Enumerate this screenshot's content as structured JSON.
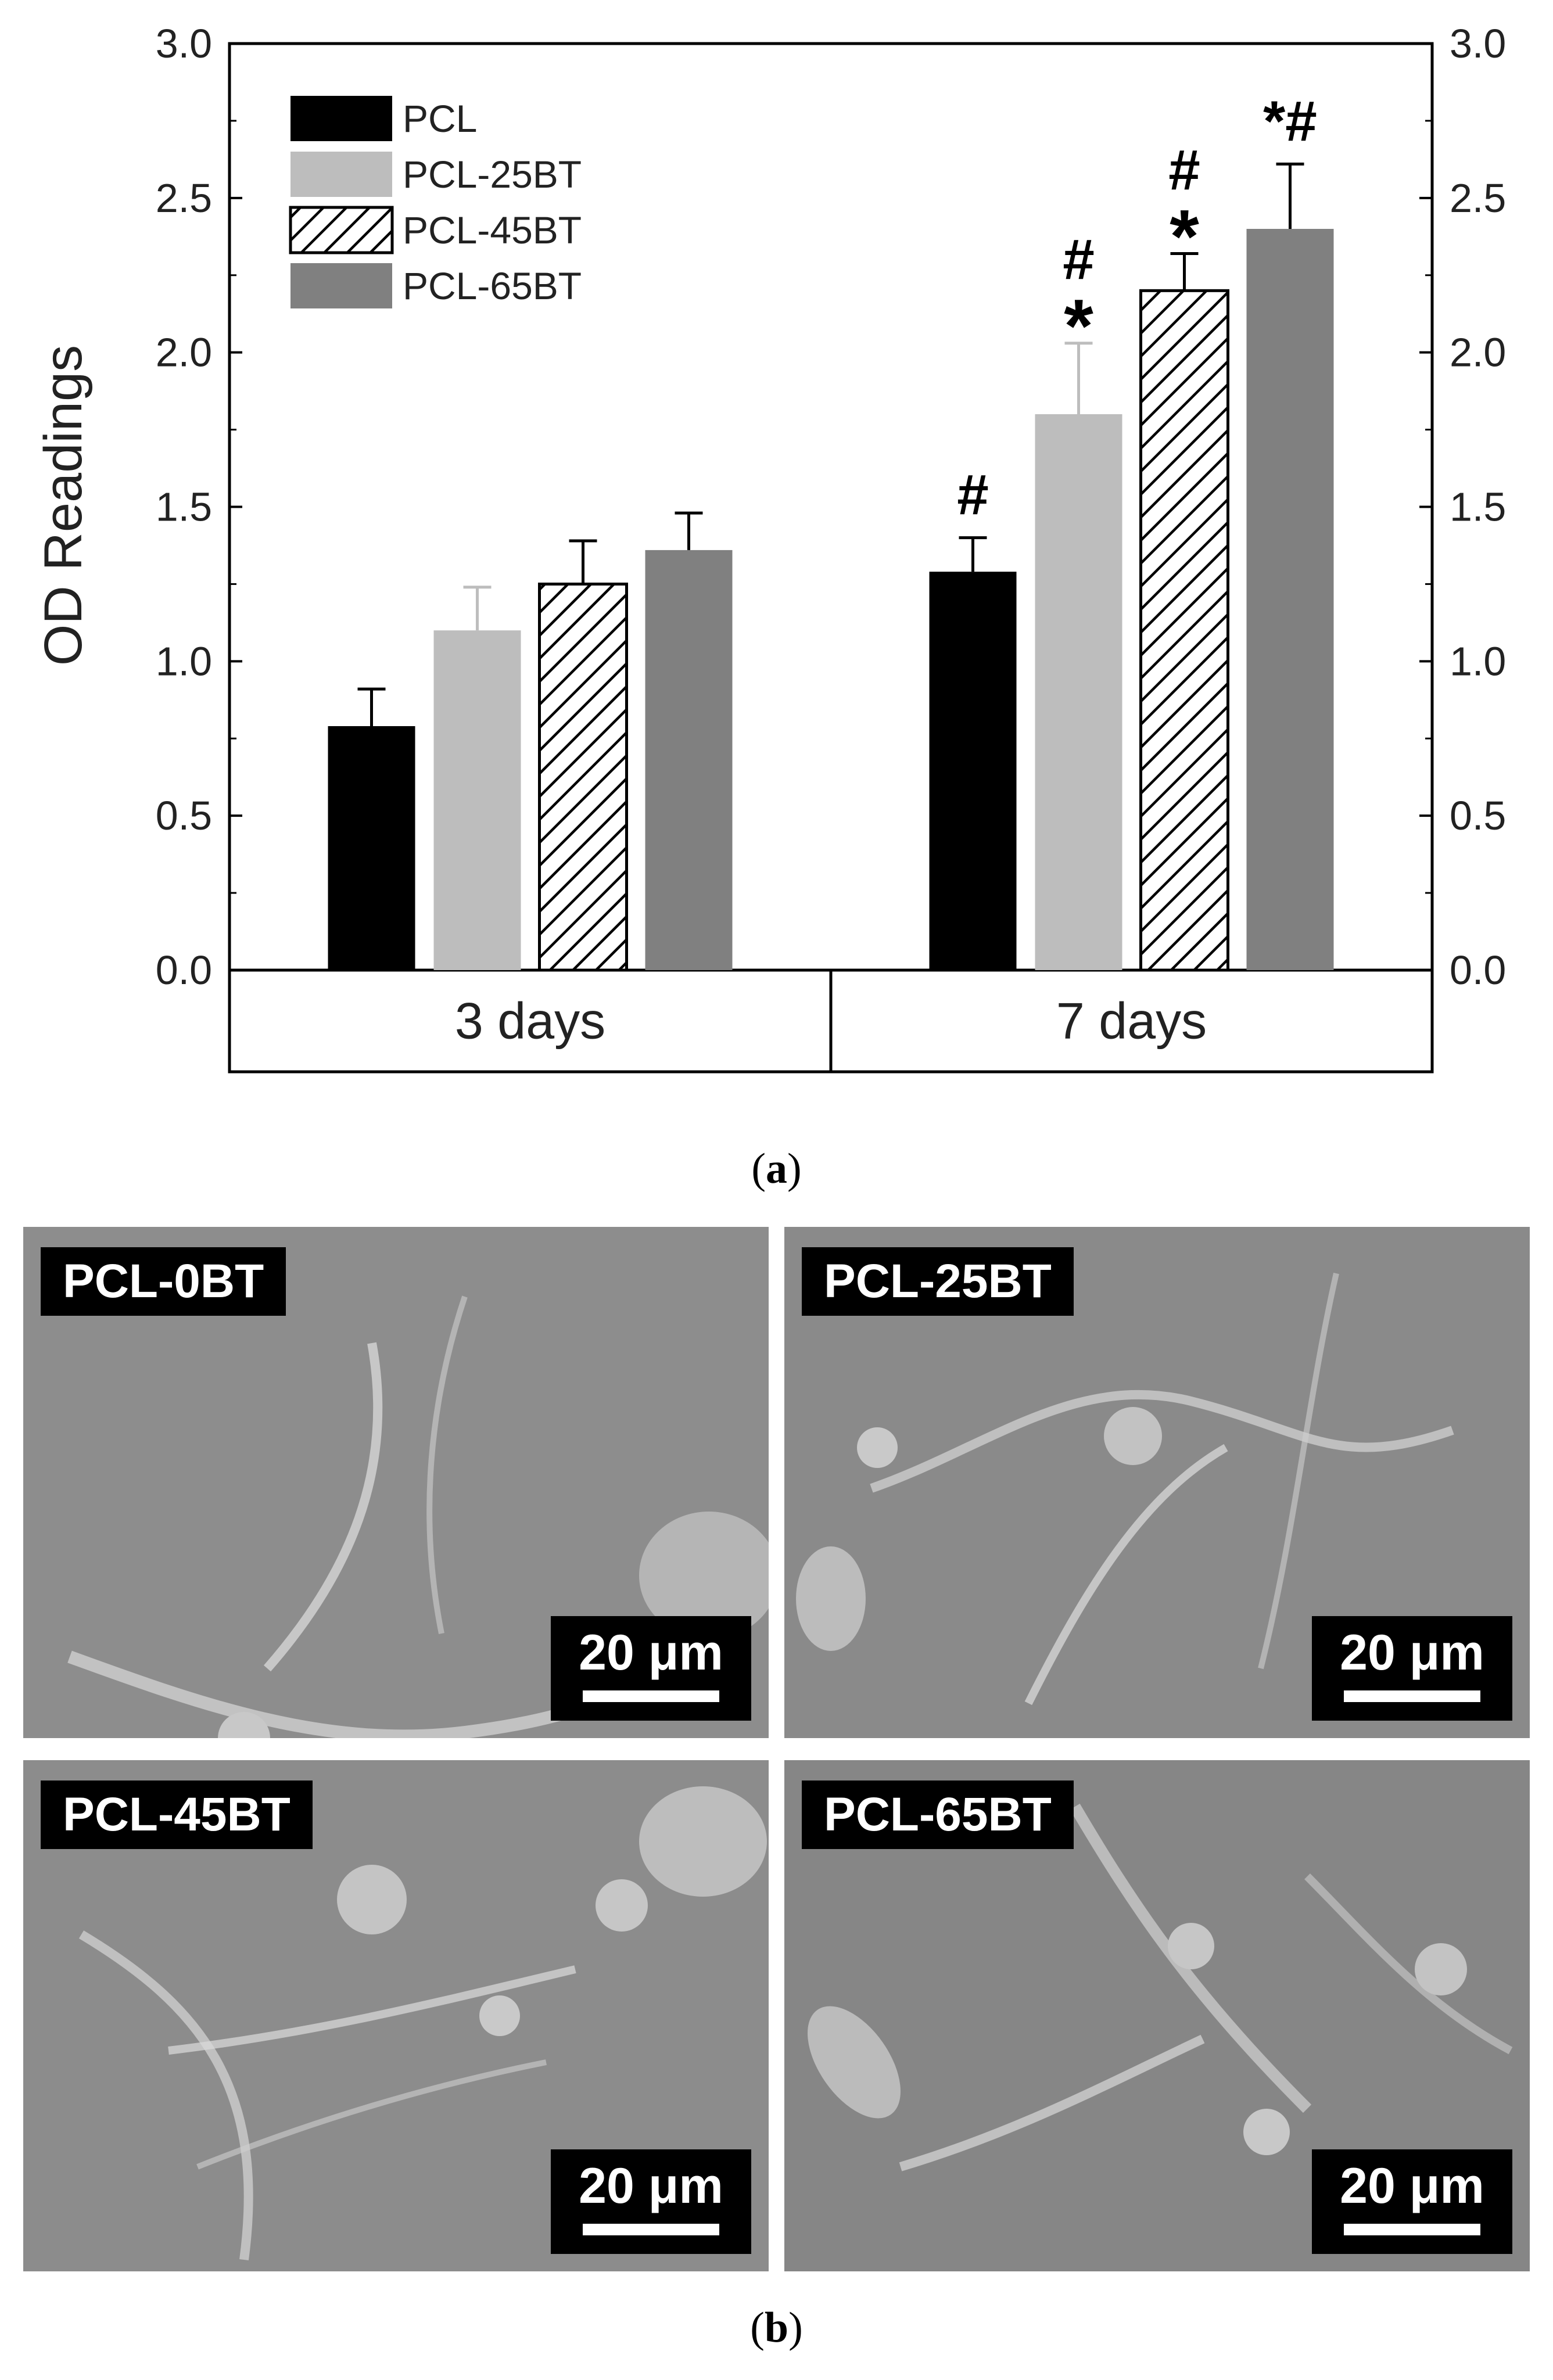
{
  "panel_a": {
    "caption_letter": "a",
    "chart_data": {
      "type": "bar",
      "categories": [
        "3 days",
        "7 days"
      ],
      "series": [
        {
          "name": "PCL",
          "values": [
            0.79,
            1.29
          ],
          "errors": [
            0.12,
            0.11
          ],
          "color": "#000000",
          "pattern": "solid"
        },
        {
          "name": "PCL-25BT",
          "values": [
            1.1,
            1.8
          ],
          "errors": [
            0.14,
            0.23
          ],
          "color": "#bdbdbd",
          "pattern": "solid"
        },
        {
          "name": "PCL-45BT",
          "values": [
            1.25,
            2.2
          ],
          "errors": [
            0.14,
            0.12
          ],
          "color": "#ffffff",
          "pattern": "hatch"
        },
        {
          "name": "PCL-65BT",
          "values": [
            1.36,
            2.4
          ],
          "errors": [
            0.12,
            0.21
          ],
          "color": "#808080",
          "pattern": "solid"
        }
      ],
      "annotations": [
        {
          "category": "7 days",
          "series": "PCL",
          "text": "#"
        },
        {
          "category": "7 days",
          "series": "PCL-25BT",
          "text": "#\n*"
        },
        {
          "category": "7 days",
          "series": "PCL-45BT",
          "text": "#\n*"
        },
        {
          "category": "7 days",
          "series": "PCL-65BT",
          "text": "*#"
        }
      ],
      "ylabel": "OD Readings",
      "ylim": [
        0,
        3.0
      ],
      "yticks": [
        "0.0",
        "0.5",
        "1.0",
        "1.5",
        "2.0",
        "2.5",
        "3.0"
      ],
      "right_axis_mirrored": true,
      "legend_position": "top-left",
      "grid": false
    }
  },
  "panel_b": {
    "caption_letter": "b",
    "images": [
      {
        "label": "PCL-0BT",
        "scalebar": "20 μm"
      },
      {
        "label": "PCL-25BT",
        "scalebar": "20 μm"
      },
      {
        "label": "PCL-45BT",
        "scalebar": "20 μm"
      },
      {
        "label": "PCL-65BT",
        "scalebar": "20 μm"
      }
    ]
  }
}
